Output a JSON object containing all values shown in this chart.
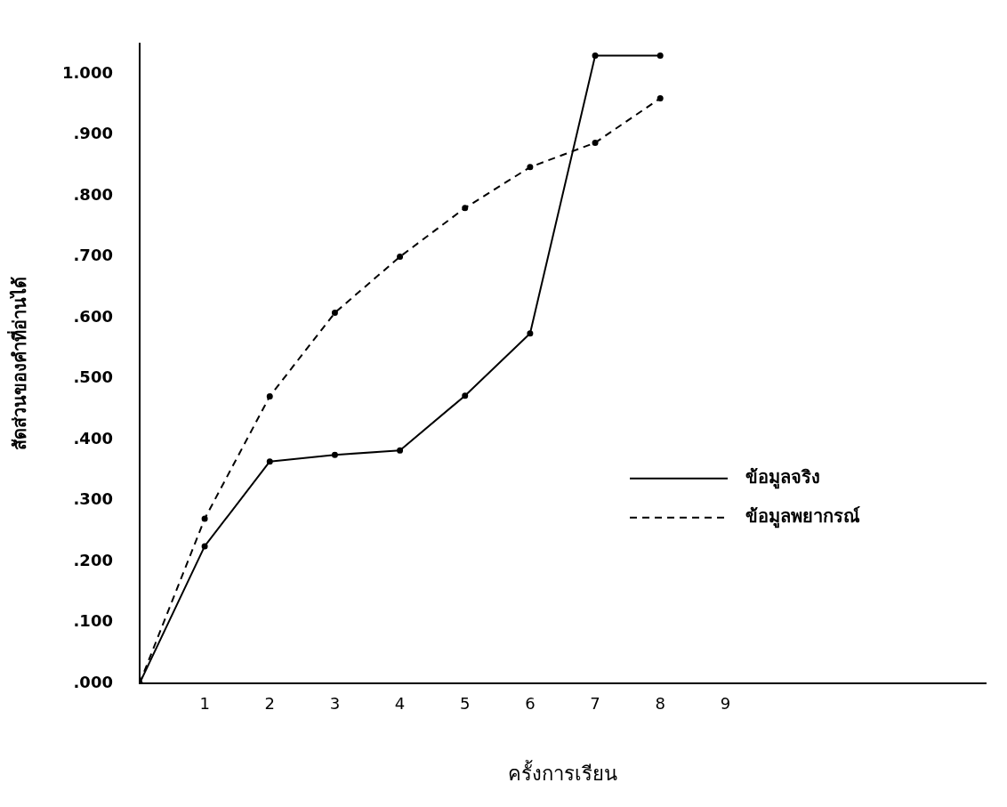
{
  "chart_data": {
    "type": "line",
    "xlabel": "ครั้งการเรียน",
    "ylabel": "สัดส่วนของคำที่อ่านได้",
    "x": [
      0,
      1,
      2,
      3,
      4,
      5,
      6,
      7,
      8
    ],
    "xlim": [
      0,
      13
    ],
    "xticks": [
      1,
      2,
      3,
      4,
      5,
      6,
      7,
      8,
      9
    ],
    "ylim": [
      0,
      1.05
    ],
    "yticks": [
      {
        "value": 0,
        "label": ".000"
      },
      {
        "value": 0.1,
        "label": ".100"
      },
      {
        "value": 0.2,
        "label": ".200"
      },
      {
        "value": 0.3,
        "label": ".300"
      },
      {
        "value": 0.4,
        "label": ".400"
      },
      {
        "value": 0.5,
        "label": ".500"
      },
      {
        "value": 0.6,
        "label": ".600"
      },
      {
        "value": 0.7,
        "label": ".700"
      },
      {
        "value": 0.8,
        "label": ".800"
      },
      {
        "value": 0.9,
        "label": ".900"
      },
      {
        "value": 1,
        "label": "1.000"
      }
    ],
    "series": [
      {
        "name": "ข้อมูลจริง",
        "color": "#000000",
        "line_style": "solid",
        "values": [
          0,
          0.225,
          0.364,
          0.375,
          0.382,
          0.472,
          0.574,
          1.03,
          1.03
        ]
      },
      {
        "name": "ข้อมูลพยากรณ์",
        "color": "#000000",
        "line_style": "dashed",
        "values": [
          0,
          0.27,
          0.471,
          0.608,
          0.7,
          0.78,
          0.847,
          0.887,
          0.96
        ]
      }
    ],
    "marker": "circle",
    "grid": false,
    "legend": "right"
  }
}
